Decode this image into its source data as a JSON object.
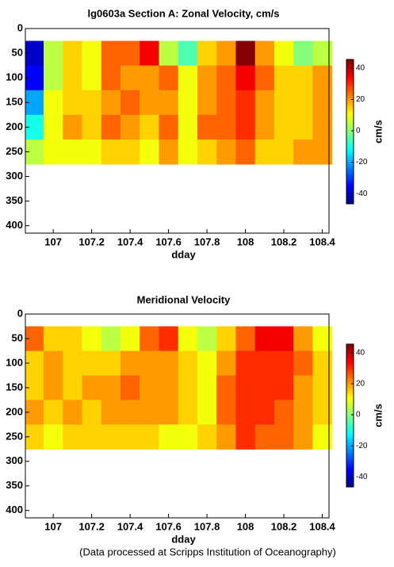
{
  "chart_data": [
    {
      "type": "contour",
      "title": "lg0603a Section A: Zonal Velocity, cm/s",
      "xlabel": "dday",
      "x": [
        106.9,
        107.0,
        107.1,
        107.2,
        107.3,
        107.4,
        107.5,
        107.6,
        107.7,
        107.8,
        107.9,
        108.0,
        108.1,
        108.2,
        108.3,
        108.4
      ],
      "y": [
        50,
        100,
        150,
        200,
        250
      ],
      "z": [
        [
          -40,
          5,
          15,
          10,
          25,
          25,
          35,
          5,
          -5,
          15,
          20,
          45,
          20,
          10,
          0,
          5
        ],
        [
          -35,
          5,
          15,
          10,
          25,
          20,
          20,
          25,
          10,
          20,
          25,
          35,
          25,
          15,
          15,
          20
        ],
        [
          -20,
          10,
          15,
          15,
          20,
          25,
          20,
          20,
          10,
          20,
          25,
          30,
          20,
          15,
          15,
          20
        ],
        [
          -10,
          10,
          20,
          15,
          25,
          20,
          15,
          25,
          10,
          25,
          25,
          30,
          20,
          15,
          15,
          20
        ],
        [
          5,
          10,
          10,
          10,
          15,
          15,
          10,
          20,
          10,
          15,
          20,
          25,
          15,
          15,
          20,
          20
        ]
      ],
      "xlim": [
        106.855,
        108.435
      ],
      "xticks": [
        107,
        107.2,
        107.4,
        107.6,
        107.8,
        108,
        108.2,
        108.4
      ],
      "ylim": [
        0,
        415
      ],
      "yticks": [
        0,
        50,
        100,
        150,
        200,
        250,
        300,
        350,
        400
      ],
      "yreversed": true,
      "colormap": "jet",
      "clim": [
        -46.5,
        45.5
      ],
      "cticks": [
        -40,
        -20,
        0,
        20,
        40
      ],
      "clabel": "cm/s"
    },
    {
      "type": "contour",
      "title": "Meridional Velocity",
      "xlabel": "dday",
      "x": [
        106.9,
        107.0,
        107.1,
        107.2,
        107.3,
        107.4,
        107.5,
        107.6,
        107.7,
        107.8,
        107.9,
        108.0,
        108.1,
        108.2,
        108.3,
        108.4
      ],
      "y": [
        50,
        100,
        150,
        200,
        250
      ],
      "z": [
        [
          25,
          15,
          15,
          10,
          5,
          10,
          25,
          30,
          10,
          5,
          15,
          25,
          35,
          35,
          20,
          10
        ],
        [
          15,
          20,
          15,
          15,
          15,
          20,
          20,
          20,
          15,
          10,
          20,
          30,
          30,
          30,
          25,
          15
        ],
        [
          15,
          20,
          15,
          20,
          20,
          25,
          20,
          20,
          15,
          10,
          25,
          30,
          30,
          30,
          20,
          15
        ],
        [
          20,
          15,
          20,
          15,
          20,
          20,
          20,
          20,
          15,
          10,
          25,
          30,
          30,
          25,
          20,
          15
        ],
        [
          15,
          10,
          15,
          15,
          15,
          15,
          15,
          10,
          10,
          15,
          20,
          30,
          25,
          25,
          20,
          10
        ]
      ],
      "xlim": [
        106.855,
        108.435
      ],
      "xticks": [
        107,
        107.2,
        107.4,
        107.6,
        107.8,
        108,
        108.2,
        108.4
      ],
      "ylim": [
        0,
        415
      ],
      "yticks": [
        0,
        50,
        100,
        150,
        200,
        250,
        300,
        350,
        400
      ],
      "yreversed": true,
      "colormap": "jet",
      "clim": [
        -46.5,
        45.5
      ],
      "cticks": [
        -40,
        -20,
        0,
        20,
        40
      ],
      "clabel": "cm/s"
    }
  ],
  "footnote": "(Data processed at Scripps Institution of Oceanography)"
}
